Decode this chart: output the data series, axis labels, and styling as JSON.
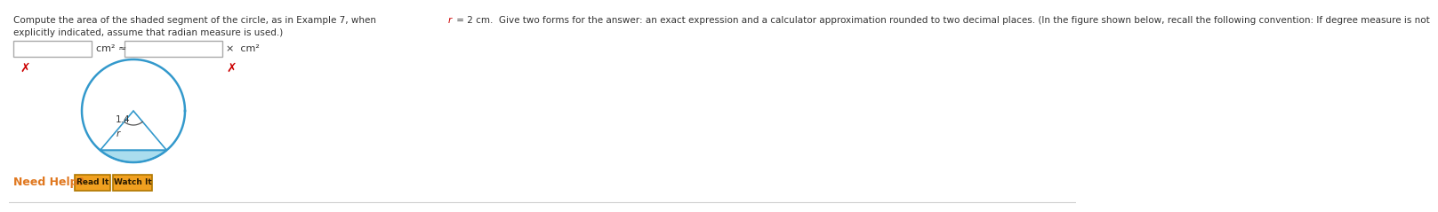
{
  "background_color": "#ffffff",
  "cross_color": "#cc0000",
  "need_help_color": "#e07820",
  "need_help_text": "Need Help?",
  "btn1_text": "Read It",
  "btn2_text": "Watch It",
  "btn_bg": "#f0a020",
  "btn_border": "#b07800",
  "circle_color": "#3399cc",
  "shaded_color": "#aaddee",
  "angle_label": "1.4",
  "r_label": "r",
  "text_line1a": "Compute the area of the shaded segment of the circle, as in Example 7, when  ",
  "text_line1b": "r",
  "text_line1c": " = 2 cm.  Give two forms for the answer: an exact expression and a calculator approximation rounded to two decimal places. (In the figure shown below, recall the following convention: If degree measure is not",
  "text_line2": "explicitly indicated, assume that radian measure is used.)",
  "text_fontsize": 7.5,
  "cm2_label": "cm² ≈",
  "cm2_label2": "cm²"
}
